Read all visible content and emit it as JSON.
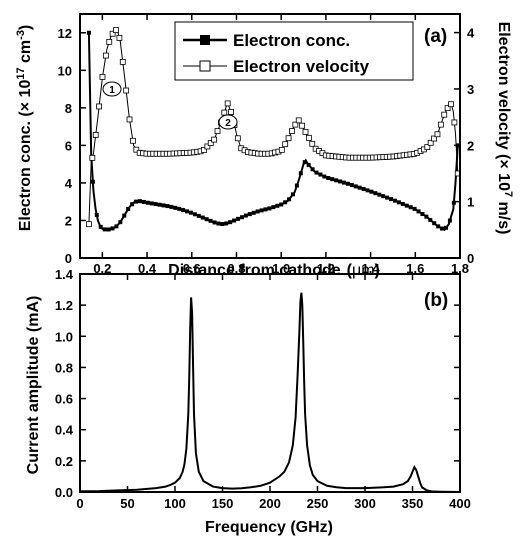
{
  "chart_data": [
    {
      "type": "line",
      "panel_label": "(a)",
      "xlabel": "Distance from cathode",
      "xunit": "μm",
      "ylabel_left": "Electron conc. (× 10",
      "ylabel_left_exp": "17",
      "ylabel_left_unit": " cm",
      "ylabel_left_unit_exp": "-3",
      "ylabel_right": "Electron velocity  (× 10",
      "ylabel_right_exp": "7",
      "ylabel_right_unit": " m/s)",
      "xlim": [
        0.1,
        1.8
      ],
      "ylim_left": [
        0,
        13
      ],
      "ylim_right": [
        0,
        4.33
      ],
      "xticks": [
        "0.2",
        "0.4",
        "0.6",
        "0.8",
        "1.0",
        "1.2",
        "1.4",
        "1.6",
        "1.8"
      ],
      "yticks_left": [
        "0",
        "2",
        "4",
        "6",
        "8",
        "10",
        "12"
      ],
      "yticks_right": [
        "0",
        "1",
        "2",
        "3",
        "4"
      ],
      "legend_position": "top-right",
      "annotations": [
        "1",
        "2"
      ],
      "series": [
        {
          "name": "Electron conc.",
          "axis": "left",
          "marker": "filled-square",
          "x": [
            0.14,
            0.15,
            0.16,
            0.17,
            0.18,
            0.19,
            0.2,
            0.22,
            0.24,
            0.26,
            0.28,
            0.3,
            0.32,
            0.34,
            0.36,
            0.38,
            0.4,
            0.45,
            0.5,
            0.55,
            0.6,
            0.65,
            0.7,
            0.73,
            0.76,
            0.8,
            0.85,
            0.9,
            0.95,
            1.0,
            1.03,
            1.06,
            1.08,
            1.1,
            1.11,
            1.12,
            1.15,
            1.2,
            1.3,
            1.4,
            1.5,
            1.6,
            1.65,
            1.7,
            1.73,
            1.75,
            1.77,
            1.78,
            1.79
          ],
          "y": [
            12.0,
            5.5,
            3.6,
            2.6,
            2.0,
            1.7,
            1.55,
            1.5,
            1.55,
            1.65,
            1.9,
            2.3,
            2.7,
            2.95,
            3.05,
            3.0,
            2.95,
            2.85,
            2.75,
            2.6,
            2.4,
            2.15,
            1.9,
            1.8,
            1.85,
            2.05,
            2.3,
            2.5,
            2.65,
            2.85,
            3.05,
            3.5,
            4.2,
            5.0,
            5.2,
            5.0,
            4.6,
            4.3,
            3.95,
            3.55,
            3.1,
            2.6,
            2.2,
            1.7,
            1.5,
            1.8,
            2.6,
            4.0,
            6.0
          ]
        },
        {
          "name": "Electron velocity",
          "axis": "right",
          "marker": "open-square",
          "x": [
            0.14,
            0.15,
            0.16,
            0.18,
            0.2,
            0.22,
            0.24,
            0.26,
            0.27,
            0.28,
            0.3,
            0.32,
            0.34,
            0.36,
            0.4,
            0.5,
            0.6,
            0.65,
            0.7,
            0.73,
            0.76,
            0.78,
            0.8,
            0.82,
            0.85,
            0.9,
            0.95,
            1.0,
            1.03,
            1.06,
            1.08,
            1.1,
            1.15,
            1.2,
            1.3,
            1.4,
            1.5,
            1.6,
            1.65,
            1.7,
            1.73,
            1.75,
            1.76,
            1.77,
            1.78,
            1.79
          ],
          "y": [
            0.6,
            1.7,
            1.85,
            2.5,
            3.2,
            3.7,
            3.95,
            4.05,
            4.0,
            3.85,
            3.2,
            2.5,
            2.0,
            1.87,
            1.85,
            1.85,
            1.87,
            1.9,
            2.1,
            2.4,
            2.75,
            2.55,
            2.2,
            1.95,
            1.88,
            1.85,
            1.85,
            1.9,
            2.1,
            2.35,
            2.45,
            2.3,
            1.95,
            1.82,
            1.78,
            1.78,
            1.8,
            1.85,
            1.95,
            2.2,
            2.55,
            2.7,
            2.73,
            2.6,
            2.2,
            1.5
          ]
        }
      ]
    },
    {
      "type": "line",
      "panel_label": "(b)",
      "xlabel": "Frequency (GHz)",
      "ylabel": "Current amplitude (mA)",
      "xlim": [
        0,
        400
      ],
      "ylim": [
        0,
        1.4
      ],
      "xticks": [
        "0",
        "50",
        "100",
        "150",
        "200",
        "250",
        "300",
        "350",
        "400"
      ],
      "yticks": [
        "0.0",
        "0.2",
        "0.4",
        "0.6",
        "0.8",
        "1.0",
        "1.2",
        "1.4"
      ],
      "series": [
        {
          "x": [
            0,
            20,
            40,
            60,
            80,
            90,
            95,
            100,
            105,
            108,
            110,
            112,
            114,
            115,
            116,
            117,
            118,
            119,
            120,
            122,
            125,
            130,
            140,
            150,
            160,
            170,
            180,
            190,
            200,
            210,
            215,
            220,
            224,
            227,
            229,
            231,
            232,
            233,
            234,
            235,
            236,
            237,
            239,
            242,
            245,
            250,
            260,
            270,
            280,
            300,
            320,
            330,
            340,
            345,
            348,
            350,
            352,
            354,
            356,
            358,
            360,
            365,
            370,
            380,
            400
          ],
          "y": [
            0.005,
            0.006,
            0.01,
            0.015,
            0.025,
            0.035,
            0.045,
            0.06,
            0.09,
            0.13,
            0.18,
            0.28,
            0.5,
            0.75,
            1.05,
            1.25,
            1.15,
            0.8,
            0.5,
            0.25,
            0.13,
            0.07,
            0.035,
            0.025,
            0.022,
            0.024,
            0.03,
            0.04,
            0.06,
            0.1,
            0.13,
            0.19,
            0.3,
            0.48,
            0.75,
            1.05,
            1.22,
            1.28,
            1.2,
            0.95,
            0.7,
            0.5,
            0.3,
            0.17,
            0.11,
            0.07,
            0.04,
            0.03,
            0.025,
            0.025,
            0.03,
            0.035,
            0.05,
            0.07,
            0.1,
            0.13,
            0.16,
            0.14,
            0.1,
            0.06,
            0.03,
            0.01,
            0.004,
            0.002,
            0.0
          ]
        }
      ]
    }
  ]
}
